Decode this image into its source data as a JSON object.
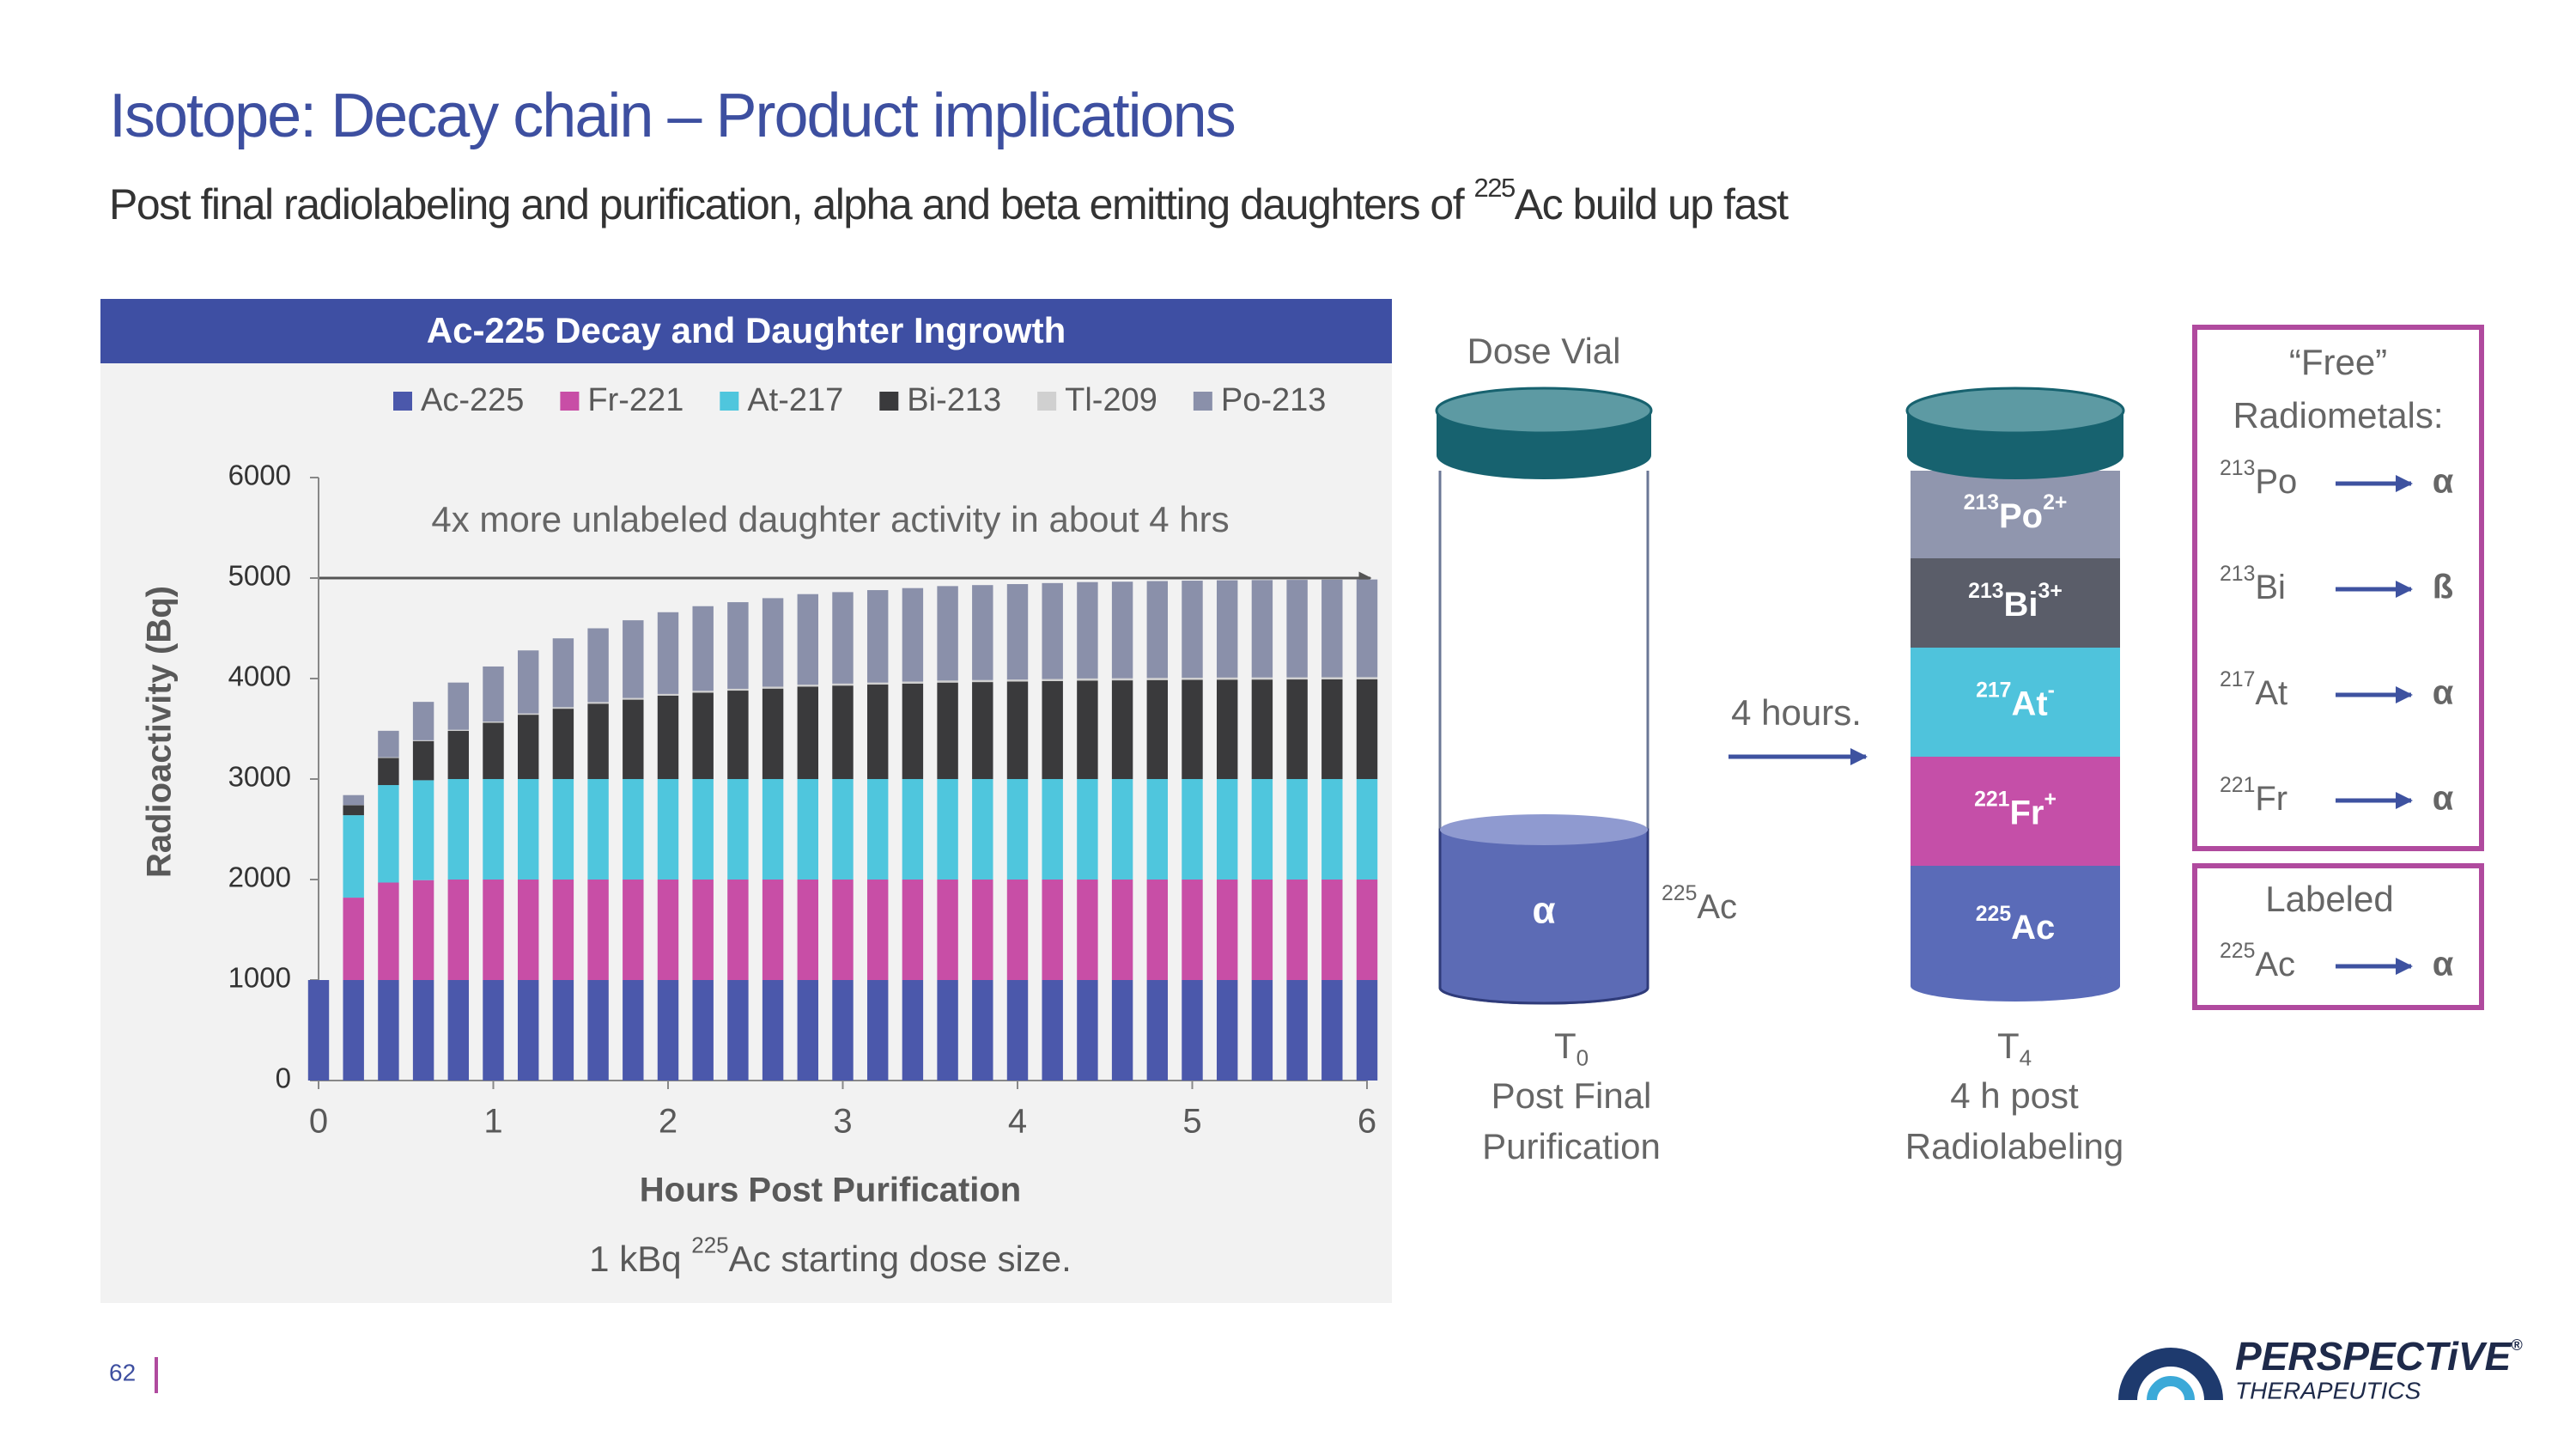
{
  "title": "Isotope: Decay chain – Product implications",
  "subtitle": {
    "before": "Post final radiolabeling and purification, alpha and beta emitting daughters of ",
    "mass": "225",
    "after": "Ac build up fast"
  },
  "chart_data": {
    "type": "bar",
    "stacked": true,
    "title": "Ac-225 Decay and Daughter Ingrowth",
    "annotation": "4x more unlabeled daughter activity in about 4 hrs",
    "xlabel": "Hours Post Purification",
    "ylabel": "Radioactivity (Bq)",
    "footnote": {
      "before": "1 kBq ",
      "mass": "225",
      "after": "Ac starting dose size."
    },
    "legend": "top",
    "x": [
      0,
      0.2,
      0.4,
      0.6,
      0.8,
      1,
      1.2,
      1.4,
      1.6,
      1.8,
      2,
      2.2,
      2.4,
      2.6,
      2.8,
      3,
      3.2,
      3.4,
      3.6,
      3.8,
      4,
      4.2,
      4.4,
      4.6,
      4.8,
      5,
      5.2,
      5.4,
      5.6,
      5.8,
      6
    ],
    "xlim": [
      0,
      6
    ],
    "xticks": [
      0,
      1,
      2,
      3,
      4,
      5,
      6
    ],
    "ylim": [
      0,
      6000
    ],
    "yticks": [
      0,
      1000,
      2000,
      3000,
      4000,
      5000,
      6000
    ],
    "series": [
      {
        "name": "Ac-225",
        "color": "#4b58ab",
        "values": [
          1000,
          1000,
          1000,
          1000,
          1000,
          1000,
          1000,
          1000,
          1000,
          1000,
          1000,
          1000,
          1000,
          1000,
          1000,
          1000,
          1000,
          1000,
          1000,
          1000,
          1000,
          1000,
          1000,
          1000,
          1000,
          1000,
          1000,
          1000,
          1000,
          1000,
          1000
        ]
      },
      {
        "name": "Fr-221",
        "color": "#c84ea6",
        "values": [
          0,
          820,
          970,
          994,
          1000,
          1000,
          1000,
          1000,
          1000,
          1000,
          1000,
          1000,
          1000,
          1000,
          1000,
          1000,
          1000,
          1000,
          1000,
          1000,
          1000,
          1000,
          1000,
          1000,
          1000,
          1000,
          1000,
          1000,
          1000,
          1000,
          1000
        ]
      },
      {
        "name": "At-217",
        "color": "#4fc6dd",
        "values": [
          0,
          820,
          970,
          994,
          1000,
          1000,
          1000,
          1000,
          1000,
          1000,
          1000,
          1000,
          1000,
          1000,
          1000,
          1000,
          1000,
          1000,
          1000,
          1000,
          1000,
          1000,
          1000,
          1000,
          1000,
          1000,
          1000,
          1000,
          1000,
          1000,
          1000
        ]
      },
      {
        "name": "Bi-213",
        "color": "#3a3a3c",
        "values": [
          0,
          100,
          270,
          390,
          480,
          560,
          640,
          700,
          750,
          790,
          830,
          860,
          880,
          900,
          920,
          930,
          940,
          950,
          960,
          965,
          970,
          975,
          980,
          982,
          985,
          987,
          989,
          990,
          991,
          992,
          993
        ]
      },
      {
        "name": "Tl-209",
        "color": "#d0d0d0",
        "values": [
          0,
          2,
          6,
          8,
          10,
          12,
          13,
          15,
          16,
          17,
          17,
          18,
          18,
          19,
          19,
          20,
          20,
          20,
          20,
          20,
          20,
          20,
          21,
          21,
          21,
          21,
          21,
          21,
          21,
          21,
          21
        ]
      },
      {
        "name": "Po-213",
        "color": "#8a90aa",
        "values": [
          0,
          98,
          264,
          382,
          470,
          548,
          627,
          685,
          734,
          773,
          813,
          842,
          862,
          881,
          901,
          910,
          920,
          930,
          940,
          945,
          950,
          955,
          959,
          961,
          964,
          966,
          968,
          969,
          970,
          971,
          972
        ]
      }
    ]
  },
  "diagram": {
    "vial_label": "Dose Vial",
    "vial1": {
      "content": "α",
      "isotope": {
        "mass": "225",
        "symbol": "Ac"
      },
      "time": {
        "T": "T",
        "sub": "0"
      },
      "caption": [
        "Post Final",
        "Purification"
      ]
    },
    "arrow_label": "4 hours.",
    "vial2": {
      "layers": [
        {
          "mass": "213",
          "symbol": "Po",
          "charge": "2+",
          "color": "#9096ae"
        },
        {
          "mass": "213",
          "symbol": "Bi",
          "charge": "3+",
          "color": "#5a5d69"
        },
        {
          "mass": "217",
          "symbol": "At",
          "charge": "-",
          "color": "#4fc3dc"
        },
        {
          "mass": "221",
          "symbol": "Fr",
          "charge": "+",
          "color": "#c54fa8"
        },
        {
          "mass": "225",
          "symbol": "Ac",
          "color": "#5a6bb8"
        }
      ],
      "time": {
        "T": "T",
        "sub": "4"
      },
      "caption": [
        "4 h post",
        "Radiolabeling"
      ]
    }
  },
  "free_box": {
    "title": [
      "“Free”",
      "Radiometals:"
    ],
    "rows": [
      {
        "mass": "213",
        "symbol": "Po",
        "emission": "α"
      },
      {
        "mass": "213",
        "symbol": "Bi",
        "emission": "ß"
      },
      {
        "mass": "217",
        "symbol": "At",
        "emission": "α"
      },
      {
        "mass": "221",
        "symbol": "Fr",
        "emission": "α"
      }
    ]
  },
  "labeled_box": {
    "title": "Labeled",
    "rows": [
      {
        "mass": "225",
        "symbol": "Ac",
        "emission": "α"
      }
    ]
  },
  "footer": {
    "page": "62",
    "logo": "PERSPECTiVE",
    "registered": "®",
    "logo_sub": "THERAPEUTICS"
  }
}
